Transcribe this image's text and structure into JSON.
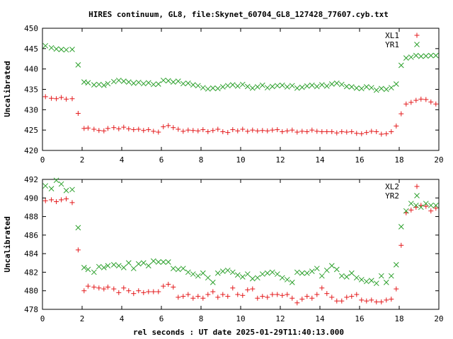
{
  "title": "HIRES continuum, GL8, file:Skynet_60704_GL8_127428_77607.cyb.txt",
  "xlabel": "rel seconds : UT date 2025-01-29T11:40:13.000",
  "colors": {
    "red": "#e41a1c",
    "green": "#2ca02c",
    "frame": "#000000"
  },
  "chart_data": [
    {
      "type": "scatter",
      "ylabel": "Uncalibrated",
      "xlim": [
        0,
        20
      ],
      "ylim": [
        420,
        450
      ],
      "xticks": [
        "0",
        "2",
        "4",
        "6",
        "8",
        "10",
        "12",
        "14",
        "16",
        "18",
        "20"
      ],
      "yticks": [
        "420",
        "425",
        "430",
        "435",
        "440",
        "445",
        "450"
      ],
      "legend_position": "top-right",
      "x": [
        0.15,
        0.45,
        0.7,
        0.95,
        1.2,
        1.5,
        1.8,
        2.1,
        2.3,
        2.6,
        2.85,
        3.1,
        3.3,
        3.6,
        3.85,
        4.1,
        4.35,
        4.6,
        4.85,
        5.1,
        5.35,
        5.6,
        5.85,
        6.1,
        6.35,
        6.6,
        6.85,
        7.1,
        7.35,
        7.6,
        7.85,
        8.1,
        8.35,
        8.6,
        8.85,
        9.1,
        9.35,
        9.6,
        9.85,
        10.1,
        10.35,
        10.6,
        10.85,
        11.1,
        11.35,
        11.6,
        11.85,
        12.1,
        12.35,
        12.6,
        12.85,
        13.1,
        13.35,
        13.6,
        13.85,
        14.1,
        14.35,
        14.6,
        14.85,
        15.1,
        15.35,
        15.6,
        15.85,
        16.1,
        16.35,
        16.6,
        16.85,
        17.1,
        17.35,
        17.6,
        17.85,
        18.1,
        18.35,
        18.6,
        18.85,
        19.1,
        19.35,
        19.6,
        19.85
      ],
      "series": [
        {
          "name": "XL1",
          "color": "#e41a1c",
          "marker": "plus",
          "values": [
            433.2,
            432.8,
            432.7,
            433.0,
            432.6,
            432.7,
            429.1,
            425.4,
            425.5,
            425.2,
            424.9,
            424.8,
            425.4,
            425.6,
            425.3,
            425.7,
            425.3,
            425.1,
            425.2,
            424.9,
            425.1,
            424.7,
            424.5,
            425.8,
            426.1,
            425.6,
            425.2,
            424.7,
            425.0,
            424.9,
            424.8,
            425.1,
            424.6,
            424.9,
            425.2,
            424.6,
            424.4,
            425.1,
            424.8,
            425.2,
            424.7,
            425.0,
            424.8,
            424.9,
            424.8,
            425.0,
            425.1,
            424.6,
            424.8,
            425.0,
            424.5,
            424.7,
            424.6,
            425.0,
            424.7,
            424.6,
            424.6,
            424.6,
            424.3,
            424.6,
            424.5,
            424.6,
            424.2,
            424.1,
            424.4,
            424.7,
            424.6,
            424.0,
            424.1,
            424.6,
            426.0,
            429.0,
            431.4,
            431.8,
            432.3,
            432.6,
            432.5,
            431.9,
            431.4
          ]
        },
        {
          "name": "YR1",
          "color": "#2ca02c",
          "marker": "cross",
          "values": [
            445.7,
            445.2,
            444.9,
            444.8,
            444.7,
            444.8,
            441.0,
            436.8,
            436.6,
            436.1,
            436.2,
            436.0,
            436.4,
            436.9,
            437.2,
            437.0,
            436.8,
            436.5,
            436.7,
            436.4,
            436.6,
            436.2,
            436.3,
            437.2,
            437.1,
            436.8,
            437.0,
            436.4,
            436.5,
            436.1,
            435.9,
            435.4,
            435.1,
            435.3,
            435.2,
            435.6,
            435.9,
            436.1,
            435.8,
            436.2,
            435.7,
            435.3,
            435.6,
            436.0,
            435.4,
            435.7,
            435.9,
            436.0,
            435.6,
            435.9,
            435.3,
            435.5,
            435.8,
            436.0,
            435.7,
            436.1,
            435.8,
            436.3,
            436.5,
            436.2,
            435.7,
            435.6,
            435.3,
            435.2,
            435.6,
            435.4,
            434.8,
            435.2,
            435.0,
            435.4,
            436.3,
            440.9,
            442.7,
            442.9,
            443.3,
            443.1,
            443.2,
            443.3,
            443.3
          ]
        }
      ]
    },
    {
      "type": "scatter",
      "ylabel": "Uncalibrated",
      "xlim": [
        0,
        20
      ],
      "ylim": [
        478,
        492
      ],
      "xticks": [
        "0",
        "2",
        "4",
        "6",
        "8",
        "10",
        "12",
        "14",
        "16",
        "18",
        "20"
      ],
      "yticks": [
        "478",
        "480",
        "482",
        "484",
        "486",
        "488",
        "490",
        "492"
      ],
      "legend_position": "top-right",
      "x": [
        0.15,
        0.45,
        0.7,
        0.95,
        1.2,
        1.5,
        1.8,
        2.1,
        2.3,
        2.6,
        2.85,
        3.1,
        3.3,
        3.6,
        3.85,
        4.1,
        4.35,
        4.6,
        4.85,
        5.1,
        5.35,
        5.6,
        5.85,
        6.1,
        6.35,
        6.6,
        6.85,
        7.1,
        7.35,
        7.6,
        7.85,
        8.1,
        8.35,
        8.6,
        8.85,
        9.1,
        9.35,
        9.6,
        9.85,
        10.1,
        10.35,
        10.6,
        10.85,
        11.1,
        11.35,
        11.6,
        11.85,
        12.1,
        12.35,
        12.6,
        12.85,
        13.1,
        13.35,
        13.6,
        13.85,
        14.1,
        14.35,
        14.6,
        14.85,
        15.1,
        15.35,
        15.6,
        15.85,
        16.1,
        16.35,
        16.6,
        16.85,
        17.1,
        17.35,
        17.6,
        17.85,
        18.1,
        18.35,
        18.6,
        18.85,
        19.1,
        19.35,
        19.6,
        19.85
      ],
      "series": [
        {
          "name": "XL2",
          "color": "#e41a1c",
          "marker": "plus",
          "values": [
            489.7,
            489.8,
            489.6,
            489.8,
            489.9,
            489.5,
            484.4,
            480.0,
            480.5,
            480.4,
            480.3,
            480.2,
            480.4,
            480.2,
            479.8,
            480.3,
            480.0,
            479.7,
            480.0,
            479.8,
            479.9,
            479.9,
            479.9,
            480.5,
            480.7,
            480.4,
            479.3,
            479.4,
            479.6,
            479.2,
            479.4,
            479.2,
            479.6,
            479.9,
            479.3,
            479.6,
            479.4,
            480.3,
            479.6,
            479.5,
            480.1,
            480.2,
            479.2,
            479.4,
            479.3,
            479.6,
            479.6,
            479.5,
            479.6,
            479.2,
            478.7,
            479.1,
            479.4,
            479.2,
            479.6,
            480.3,
            479.7,
            479.3,
            478.9,
            478.9,
            479.3,
            479.4,
            479.6,
            479.0,
            478.9,
            479.0,
            478.8,
            478.8,
            479.0,
            479.1,
            480.2,
            484.9,
            488.4,
            488.7,
            489.0,
            489.2,
            489.1,
            488.6,
            488.9
          ]
        },
        {
          "name": "YR2",
          "color": "#2ca02c",
          "marker": "cross",
          "values": [
            491.3,
            491.0,
            491.9,
            491.5,
            490.8,
            490.9,
            486.8,
            482.5,
            482.3,
            482.0,
            482.6,
            482.5,
            482.7,
            482.8,
            482.7,
            482.5,
            483.0,
            482.4,
            482.9,
            483.0,
            482.7,
            483.2,
            483.1,
            483.1,
            483.1,
            482.4,
            482.3,
            482.4,
            482.0,
            481.8,
            481.6,
            481.9,
            481.4,
            480.9,
            481.9,
            482.1,
            482.2,
            482.0,
            481.7,
            481.5,
            481.8,
            481.3,
            481.4,
            481.8,
            481.9,
            482.0,
            481.8,
            481.4,
            481.2,
            480.9,
            482.0,
            481.9,
            481.9,
            482.1,
            482.4,
            481.6,
            482.2,
            482.7,
            482.3,
            481.6,
            481.5,
            481.9,
            481.4,
            481.2,
            481.0,
            481.1,
            480.8,
            481.6,
            480.9,
            481.6,
            482.8,
            486.9,
            488.6,
            489.4,
            489.2,
            489.0,
            489.4,
            489.2,
            489.2
          ]
        }
      ]
    }
  ]
}
